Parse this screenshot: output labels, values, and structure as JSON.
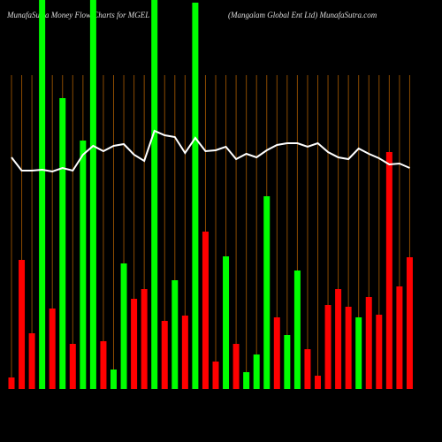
{
  "chart_data": {
    "type": "bar",
    "title": "MunafaSutra  Money Flow  Charts for MGEL",
    "subtitle": "(Mangalam Global Ent Ltd) MunafaSutra.com",
    "categories": [
      null,
      null,
      null,
      null,
      null,
      null,
      null,
      null,
      null,
      null,
      null,
      null,
      null,
      null,
      null,
      null,
      null,
      null,
      null,
      null,
      null,
      null,
      null,
      null,
      null,
      null,
      null,
      null,
      null,
      null,
      null,
      null,
      null,
      null,
      null,
      null,
      null,
      null,
      null,
      null
    ],
    "values": [
      13,
      146,
      63,
      440,
      91,
      329,
      51,
      281,
      440,
      54,
      22,
      142,
      102,
      113,
      440,
      77,
      123,
      83,
      437,
      178,
      31,
      150,
      51,
      19,
      39,
      218,
      81,
      61,
      134,
      45,
      15,
      95,
      113,
      93,
      81,
      104,
      84,
      268,
      116,
      149
    ],
    "bar_colors": [
      "#ff0000",
      "#ff0000",
      "#ff0000",
      "#00ff00",
      "#ff0000",
      "#00ff00",
      "#ff0000",
      "#00ff00",
      "#00ff00",
      "#ff0000",
      "#00ff00",
      "#00ff00",
      "#ff0000",
      "#ff0000",
      "#00ff00",
      "#ff0000",
      "#00ff00",
      "#ff0000",
      "#00ff00",
      "#ff0000",
      "#ff0000",
      "#00ff00",
      "#ff0000",
      "#00ff00",
      "#00ff00",
      "#00ff00",
      "#ff0000",
      "#00ff00",
      "#00ff00",
      "#ff0000",
      "#ff0000",
      "#ff0000",
      "#ff0000",
      "#ff0000",
      "#00ff00",
      "#ff0000",
      "#ff0000",
      "#ff0000",
      "#ff0000",
      "#ff0000"
    ],
    "ylim": [
      0,
      440
    ],
    "line": {
      "color": "#ffffff",
      "axis": "y2",
      "values": [
        262,
        247,
        247,
        248,
        246,
        250,
        247,
        265,
        275,
        269,
        275,
        277,
        265,
        258,
        292,
        287,
        285,
        267,
        284,
        269,
        270,
        274,
        260,
        266,
        262,
        270,
        276,
        278,
        278,
        274,
        278,
        268,
        262,
        260,
        272,
        266,
        261,
        254,
        255,
        250
      ]
    },
    "y2lim": [
      0,
      440
    ],
    "grid_color": "#8a4a00"
  }
}
